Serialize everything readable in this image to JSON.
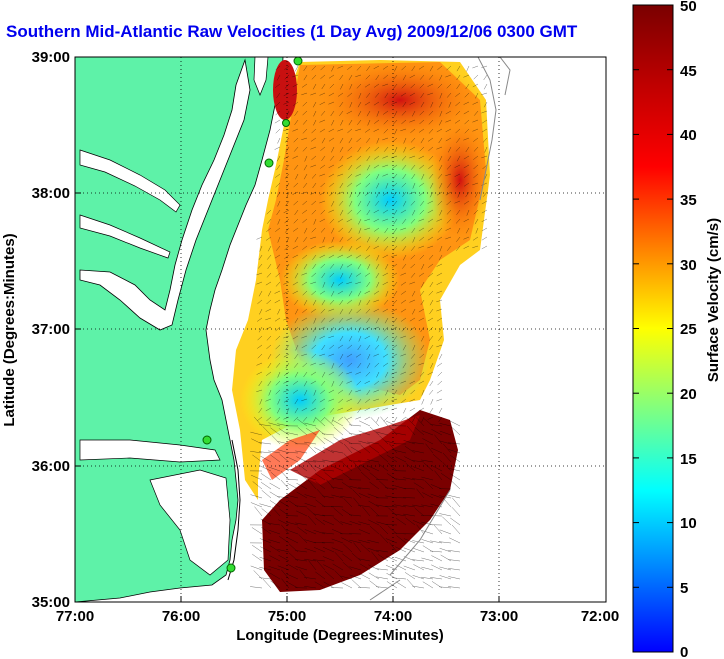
{
  "title": "Southern Mid-Atlantic Raw Velocities (1 Day Avg) 2009/12/06 0300 GMT",
  "xlabel": "Longitude (Degrees:Minutes)",
  "ylabel": "Latitude (Degrees:Minutes)",
  "colorbar_label": "Surface Velocity (cm/s)",
  "x_ticks": [
    "77:00",
    "76:00",
    "75:00",
    "74:00",
    "73:00",
    "72:00"
  ],
  "y_ticks": [
    "39:00",
    "38:00",
    "37:00",
    "36:00",
    "35:00"
  ],
  "colorbar_ticks": [
    "50",
    "45",
    "40",
    "35",
    "30",
    "25",
    "20",
    "15",
    "10",
    "5",
    "0"
  ],
  "colors": {
    "land": "#5ef2a8",
    "title": "#0000ee",
    "station": "#33dd33"
  },
  "chart_data": {
    "type": "heatmap",
    "title": "Southern Mid-Atlantic Raw Velocities (1 Day Avg) 2009/12/06 0300 GMT",
    "xlabel": "Longitude (Degrees:Minutes)",
    "ylabel": "Latitude (Degrees:Minutes)",
    "xlim": [
      -77,
      -72
    ],
    "ylim": [
      35,
      39
    ],
    "colorbar": {
      "label": "Surface Velocity (cm/s)",
      "range": [
        0,
        50
      ]
    },
    "grid": true
  }
}
